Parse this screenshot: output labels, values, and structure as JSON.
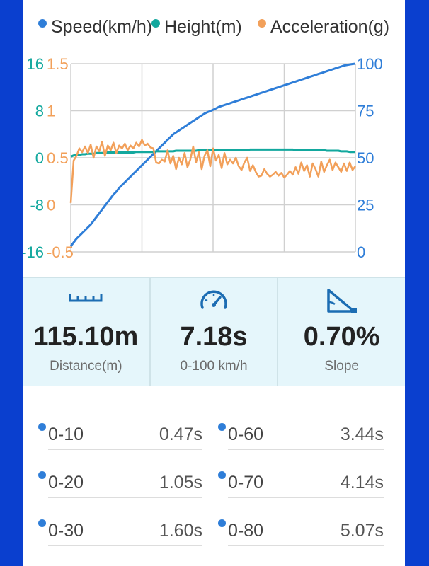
{
  "colors": {
    "speed": "#2f7ed8",
    "height": "#13a89e",
    "acceleration": "#f2a05a",
    "grid": "#d0d0d0",
    "accent": "#0a3fcf"
  },
  "chart_data": {
    "type": "line",
    "legend_position": "top",
    "grid": true,
    "x": [
      0,
      1,
      2,
      3,
      4,
      5,
      6,
      7,
      8,
      9,
      10,
      11,
      12,
      13,
      14,
      15,
      16,
      17,
      18,
      19,
      20,
      21,
      22,
      23,
      24,
      25,
      26,
      27,
      28,
      29,
      30,
      31,
      32,
      33,
      34,
      35,
      36,
      37,
      38,
      39,
      40,
      41,
      42,
      43,
      44,
      45,
      46,
      47,
      48,
      49,
      50,
      51,
      52,
      53,
      54,
      55,
      56,
      57,
      58,
      59,
      60,
      61,
      62,
      63,
      64,
      65,
      66,
      67,
      68,
      69,
      70,
      71,
      72,
      73,
      74,
      75,
      76,
      77,
      78,
      79,
      80,
      81,
      82,
      83,
      84,
      85,
      86,
      87,
      88,
      89,
      90,
      91,
      92,
      93,
      94,
      95,
      96,
      97,
      98,
      99,
      100
    ],
    "xlim": [
      0,
      100
    ],
    "axes": {
      "speed": {
        "ticks": [
          "0",
          "25",
          "50",
          "75",
          "100"
        ],
        "range": [
          0,
          100
        ]
      },
      "height": {
        "ticks": [
          "-16",
          "-8",
          "0",
          "8",
          "16"
        ],
        "range": [
          -16,
          16
        ]
      },
      "acceleration": {
        "ticks": [
          "-0.5",
          "0",
          "0.5",
          "1",
          "1.5"
        ],
        "range": [
          -0.5,
          1.5
        ]
      }
    },
    "series": [
      {
        "name": "Speed(km/h)",
        "axis": "speed",
        "values": [
          3,
          5,
          7,
          8.5,
          10,
          11.5,
          13,
          14.5,
          16.5,
          18.5,
          20.5,
          22.5,
          24.5,
          26.5,
          28.5,
          30.5,
          32,
          34,
          35.5,
          37,
          38.5,
          40,
          41.5,
          43,
          44.5,
          46,
          47.5,
          49,
          50.5,
          52,
          53.5,
          55,
          56.5,
          58,
          59.5,
          61,
          62.5,
          63.5,
          64.5,
          65.5,
          66.5,
          67.5,
          68.5,
          69.5,
          70.5,
          71.5,
          72.5,
          73.5,
          74.2,
          74.8,
          75.5,
          76.2,
          77,
          77.5,
          78,
          78.5,
          79,
          79.5,
          80,
          80.5,
          81,
          81.5,
          82,
          82.5,
          83,
          83.5,
          84,
          84.5,
          85,
          85.5,
          86,
          86.5,
          87,
          87.5,
          88,
          88.5,
          89,
          89.5,
          90,
          90.5,
          91,
          91.5,
          92,
          92.5,
          93,
          93.5,
          94,
          94.5,
          95,
          95.5,
          96,
          96.5,
          97,
          97.5,
          98,
          98.5,
          99,
          99.3,
          99.6,
          99.8,
          100
        ]
      },
      {
        "name": "Height(m)",
        "axis": "height",
        "values": [
          0.2,
          0.4,
          0.5,
          0.5,
          0.6,
          0.6,
          0.7,
          0.7,
          0.7,
          0.8,
          0.8,
          0.8,
          0.9,
          0.9,
          0.9,
          0.9,
          0.9,
          0.9,
          0.9,
          0.9,
          0.9,
          0.9,
          0.9,
          1.0,
          1.0,
          1.0,
          1.0,
          1.0,
          1.0,
          1.0,
          1.1,
          1.1,
          1.1,
          1.1,
          1.1,
          1.1,
          1.1,
          1.2,
          1.2,
          1.2,
          1.2,
          1.2,
          1.2,
          1.2,
          1.2,
          1.3,
          1.3,
          1.3,
          1.3,
          1.3,
          1.3,
          1.3,
          1.3,
          1.3,
          1.3,
          1.3,
          1.3,
          1.3,
          1.3,
          1.3,
          1.3,
          1.3,
          1.3,
          1.4,
          1.4,
          1.4,
          1.4,
          1.4,
          1.4,
          1.4,
          1.4,
          1.4,
          1.4,
          1.4,
          1.4,
          1.4,
          1.4,
          1.4,
          1.4,
          1.3,
          1.3,
          1.3,
          1.3,
          1.3,
          1.3,
          1.3,
          1.3,
          1.3,
          1.3,
          1.3,
          1.2,
          1.2,
          1.2,
          1.2,
          1.2,
          1.1,
          1.1,
          1.1,
          1.0,
          1.0,
          1.0
        ]
      },
      {
        "name": "Acceleration(g)",
        "axis": "acceleration",
        "values": [
          0.02,
          0.47,
          0.52,
          0.6,
          0.56,
          0.62,
          0.55,
          0.64,
          0.5,
          0.62,
          0.57,
          0.67,
          0.52,
          0.63,
          0.58,
          0.66,
          0.55,
          0.63,
          0.6,
          0.65,
          0.58,
          0.63,
          0.6,
          0.66,
          0.62,
          0.69,
          0.63,
          0.65,
          0.61,
          0.6,
          0.45,
          0.44,
          0.48,
          0.46,
          0.58,
          0.44,
          0.52,
          0.38,
          0.5,
          0.43,
          0.55,
          0.4,
          0.48,
          0.62,
          0.45,
          0.56,
          0.38,
          0.52,
          0.58,
          0.41,
          0.6,
          0.47,
          0.53,
          0.39,
          0.55,
          0.43,
          0.48,
          0.44,
          0.5,
          0.41,
          0.37,
          0.45,
          0.5,
          0.36,
          0.42,
          0.35,
          0.3,
          0.31,
          0.38,
          0.33,
          0.3,
          0.32,
          0.35,
          0.31,
          0.34,
          0.29,
          0.32,
          0.36,
          0.32,
          0.4,
          0.33,
          0.45,
          0.36,
          0.42,
          0.3,
          0.44,
          0.38,
          0.3,
          0.46,
          0.35,
          0.42,
          0.48,
          0.37,
          0.45,
          0.4,
          0.35,
          0.44,
          0.36,
          0.45,
          0.37,
          0.41
        ]
      }
    ]
  },
  "stats": [
    {
      "icon": "ruler-icon",
      "value": "115.10m",
      "label": "Distance(m)"
    },
    {
      "icon": "speedometer-icon",
      "value": "7.18s",
      "label": "0-100 km/h"
    },
    {
      "icon": "slope-icon",
      "value": "0.70%",
      "label": "Slope"
    }
  ],
  "splits": [
    {
      "range": "0-10",
      "time": "0.47s"
    },
    {
      "range": "0-20",
      "time": "1.05s"
    },
    {
      "range": "0-30",
      "time": "1.60s"
    },
    {
      "range": "0-60",
      "time": "3.44s"
    },
    {
      "range": "0-70",
      "time": "4.14s"
    },
    {
      "range": "0-80",
      "time": "5.07s"
    }
  ]
}
